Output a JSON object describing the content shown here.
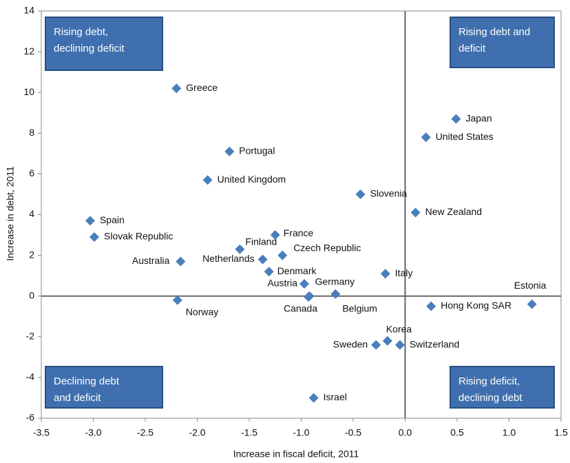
{
  "chart_data": {
    "type": "scatter",
    "x_label": "Increase in fiscal deficit, 2011",
    "y_label": "Increase in debt, 2011",
    "color": "#4a7ebb",
    "xlim": [
      -3.5,
      1.5
    ],
    "ylim": [
      -6,
      14
    ],
    "xticks": [
      -3.5,
      {
        "value": -3,
        "label": "-3.0"
      },
      -2.5,
      {
        "value": -2,
        "label": "-2.0"
      },
      -1.5,
      {
        "value": -1,
        "label": "-1.0"
      },
      -0.5,
      {
        "value": 0,
        "label": "0.0"
      },
      0.5,
      {
        "value": 1,
        "label": "1.0"
      },
      1.5
    ],
    "yticks": [
      -6,
      -4,
      -2,
      0,
      2,
      4,
      6,
      8,
      10,
      12,
      14
    ],
    "labels": [
      "Greece",
      "Portugal",
      "United Kingdom",
      "Spain",
      "Slovak Republic",
      "Australia",
      "Finland",
      "France",
      "Netherlands",
      "Czech Republic",
      "Denmark",
      "Austria",
      "Germany",
      "Canada",
      "Belgium",
      "Norway",
      "Slovenia",
      "Italy",
      "Japan",
      "United States",
      "New Zealand",
      "Hong Kong SAR",
      "Estonia",
      "Korea",
      "Sweden",
      "Switzerland",
      "Israel"
    ],
    "x": [
      -2.2,
      -1.69,
      -1.9,
      -3.03,
      -2.99,
      -2.16,
      -1.59,
      -1.25,
      -1.37,
      -1.18,
      -1.31,
      -0.97,
      -0.92,
      -0.93,
      -0.67,
      -2.19,
      -0.43,
      -0.19,
      0.49,
      0.2,
      0.1,
      0.25,
      1.22,
      -0.17,
      -0.28,
      -0.05,
      -0.88
    ],
    "y": [
      10.2,
      7.1,
      5.7,
      3.7,
      2.9,
      1.7,
      2.3,
      3.0,
      1.8,
      2.0,
      1.2,
      0.6,
      0.0,
      -0.04,
      0.1,
      -0.2,
      5.0,
      1.1,
      8.7,
      7.8,
      4.1,
      -0.5,
      -0.4,
      -2.2,
      -2.4,
      -2.4,
      -5.0
    ],
    "annotations": [
      [
        "Rising debt,",
        "declining deficit"
      ],
      [
        "Rising debt and",
        "deficit"
      ],
      [
        "Declining debt",
        "and deficit"
      ],
      [
        "Rising deficit,",
        "declining debt"
      ]
    ]
  }
}
